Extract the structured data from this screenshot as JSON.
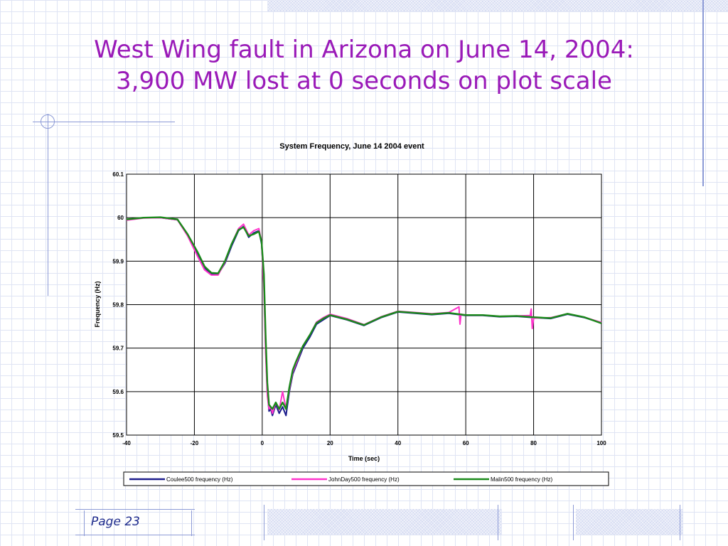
{
  "slide": {
    "title_line1": "West Wing fault in Arizona on June 14, 2004:",
    "title_line2": "3,900 MW lost at 0 seconds on plot scale",
    "page_label": "Page 23"
  },
  "colors": {
    "title": "#9a1ab8",
    "coulee": "#1c1c8c",
    "johnday": "#ff33cc",
    "malin": "#1a8a1a"
  },
  "chart_data": {
    "type": "line",
    "title": "System Frequency, June 14 2004 event",
    "xlabel": "Time (sec)",
    "ylabel": "Frequency (Hz)",
    "xlim": [
      -40,
      100
    ],
    "ylim": [
      59.5,
      60.1
    ],
    "x_ticks": [
      -40,
      -20,
      0,
      20,
      40,
      60,
      80,
      100
    ],
    "y_ticks": [
      59.5,
      59.6,
      59.7,
      59.8,
      59.9,
      60,
      60.1
    ],
    "y_tick_labels": [
      "59.5",
      "59.6",
      "59.7",
      "59.8",
      "59.9",
      "60",
      "60.1"
    ],
    "grid": true,
    "legend_position": "bottom",
    "series": [
      {
        "name": "Coulee500 frequency (Hz)",
        "x": [
          -40,
          -35,
          -30,
          -25,
          -22,
          -19,
          -17,
          -15,
          -13,
          -11,
          -9,
          -7,
          -5.5,
          -4,
          -2.5,
          -1,
          -0.2,
          0.5,
          1,
          1.5,
          2,
          2.5,
          3,
          4,
          5,
          6,
          7,
          8,
          9,
          10,
          12,
          14,
          16,
          18,
          20,
          25,
          30,
          35,
          40,
          45,
          50,
          55,
          60,
          65,
          70,
          75,
          80,
          85,
          90,
          95,
          100
        ],
        "y": [
          59.995,
          60.0,
          60.0,
          59.995,
          59.96,
          59.915,
          59.885,
          59.87,
          59.87,
          59.895,
          59.935,
          59.97,
          59.98,
          59.955,
          59.965,
          59.97,
          59.94,
          59.85,
          59.7,
          59.6,
          59.555,
          59.56,
          59.545,
          59.57,
          59.55,
          59.565,
          59.545,
          59.6,
          59.64,
          59.66,
          59.7,
          59.725,
          59.755,
          59.765,
          59.775,
          59.765,
          59.752,
          59.77,
          59.783,
          59.78,
          59.777,
          59.78,
          59.775,
          59.775,
          59.772,
          59.773,
          59.77,
          59.768,
          59.778,
          59.77,
          59.758
        ]
      },
      {
        "name": "JohnDay500 frequency (Hz)",
        "x": [
          -40,
          -35,
          -30,
          -25,
          -22,
          -19,
          -17,
          -15,
          -13,
          -11,
          -9,
          -7,
          -5.5,
          -4,
          -2.5,
          -1,
          -0.2,
          0.5,
          1,
          1.5,
          2,
          2.5,
          3,
          4,
          5,
          6,
          7,
          8,
          9,
          10,
          12,
          14,
          16,
          18,
          20,
          25,
          30,
          35,
          40,
          45,
          50,
          55,
          58,
          58.3,
          58.6,
          60,
          65,
          70,
          75,
          79,
          79.3,
          79.6,
          80,
          85,
          90,
          95,
          100
        ],
        "y": [
          59.994,
          59.999,
          60.0,
          59.995,
          59.958,
          59.91,
          59.88,
          59.868,
          59.868,
          59.898,
          59.94,
          59.975,
          59.985,
          59.96,
          59.97,
          59.975,
          59.945,
          59.84,
          59.69,
          59.59,
          59.56,
          59.565,
          59.55,
          59.575,
          59.558,
          59.6,
          59.56,
          59.605,
          59.645,
          59.665,
          59.705,
          59.73,
          59.76,
          59.77,
          59.778,
          59.768,
          59.754,
          59.772,
          59.785,
          59.782,
          59.779,
          59.782,
          59.795,
          59.755,
          59.778,
          59.776,
          59.776,
          59.773,
          59.774,
          59.775,
          59.79,
          59.745,
          59.769,
          59.77,
          59.779,
          59.771,
          59.759
        ]
      },
      {
        "name": "Malin500 frequency (Hz)",
        "x": [
          -40,
          -35,
          -30,
          -25,
          -22,
          -19,
          -17,
          -15,
          -13,
          -11,
          -9,
          -7,
          -5.5,
          -4,
          -2.5,
          -1,
          -0.2,
          0.5,
          1,
          1.5,
          2,
          2.5,
          3,
          4,
          5,
          6,
          7,
          8,
          9,
          10,
          12,
          14,
          16,
          18,
          20,
          25,
          30,
          35,
          40,
          45,
          50,
          55,
          60,
          65,
          70,
          75,
          80,
          85,
          90,
          95,
          100
        ],
        "y": [
          59.996,
          60.0,
          60.001,
          59.996,
          59.962,
          59.92,
          59.888,
          59.873,
          59.872,
          59.9,
          59.94,
          59.972,
          59.978,
          59.958,
          59.962,
          59.968,
          59.945,
          59.87,
          59.73,
          59.62,
          59.57,
          59.565,
          59.56,
          59.575,
          59.56,
          59.575,
          59.56,
          59.61,
          59.65,
          59.67,
          59.705,
          59.73,
          59.758,
          59.768,
          59.776,
          59.766,
          59.753,
          59.771,
          59.784,
          59.781,
          59.778,
          59.781,
          59.776,
          59.776,
          59.773,
          59.774,
          59.771,
          59.769,
          59.779,
          59.771,
          59.757
        ]
      }
    ]
  }
}
